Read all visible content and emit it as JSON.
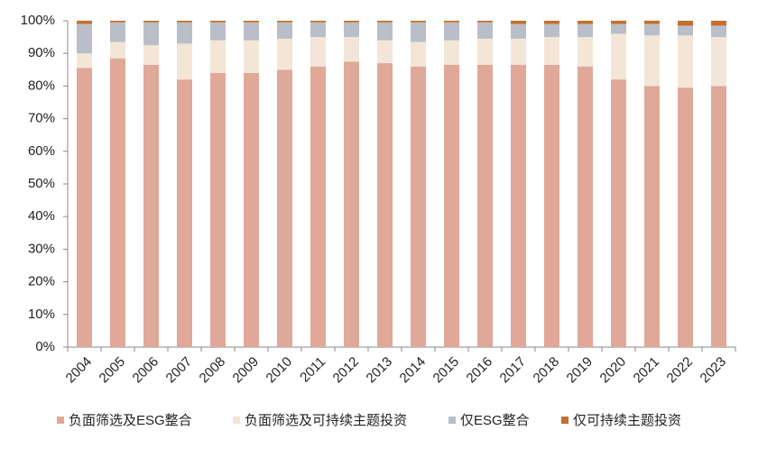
{
  "chart_data": {
    "type": "stacked_bar",
    "categories": [
      "2004",
      "2005",
      "2006",
      "2007",
      "2008",
      "2009",
      "2010",
      "2011",
      "2012",
      "2013",
      "2014",
      "2015",
      "2016",
      "2017",
      "2018",
      "2019",
      "2020",
      "2021",
      "2022",
      "2023"
    ],
    "series": [
      {
        "name": "负面筛选及ESG整合",
        "color": "#e0a898",
        "values": [
          85.5,
          88.5,
          86.5,
          82,
          84,
          84,
          85,
          86,
          87.5,
          87,
          86,
          86.5,
          86.5,
          86.5,
          86.5,
          86,
          82,
          80,
          79.5,
          80
        ]
      },
      {
        "name": "负面筛选及可持续主题投资",
        "color": "#f3e6d6",
        "values": [
          4.5,
          5,
          6,
          11,
          10,
          10,
          9.5,
          9,
          7.5,
          7,
          7.5,
          7.5,
          8,
          8,
          8.5,
          9,
          14,
          15.5,
          16,
          15
        ]
      },
      {
        "name": "仅ESG整合",
        "color": "#b9bec9",
        "values": [
          9,
          6,
          7,
          6.5,
          5.5,
          5.5,
          5,
          4.5,
          4.5,
          5.5,
          6,
          5.5,
          5,
          4.5,
          4,
          4,
          3,
          3.5,
          3,
          3.5
        ]
      },
      {
        "name": "仅可持续主题投资",
        "color": "#c5702c",
        "values": [
          1,
          0.5,
          0.5,
          0.5,
          0.5,
          0.5,
          0.5,
          0.5,
          0.5,
          0.5,
          0.5,
          0.5,
          0.5,
          1,
          1,
          1,
          1,
          1,
          1.5,
          1.5
        ]
      }
    ],
    "ylim": [
      0,
      100
    ],
    "yticks": [
      {
        "value": 0,
        "label": "0%"
      },
      {
        "value": 10,
        "label": "10%"
      },
      {
        "value": 20,
        "label": "20%"
      },
      {
        "value": 30,
        "label": "30%"
      },
      {
        "value": 40,
        "label": "40%"
      },
      {
        "value": 50,
        "label": "50%"
      },
      {
        "value": 60,
        "label": "60%"
      },
      {
        "value": 70,
        "label": "70%"
      },
      {
        "value": 80,
        "label": "80%"
      },
      {
        "value": 90,
        "label": "90%"
      },
      {
        "value": 100,
        "label": "100%"
      }
    ],
    "legend": "bottom"
  }
}
